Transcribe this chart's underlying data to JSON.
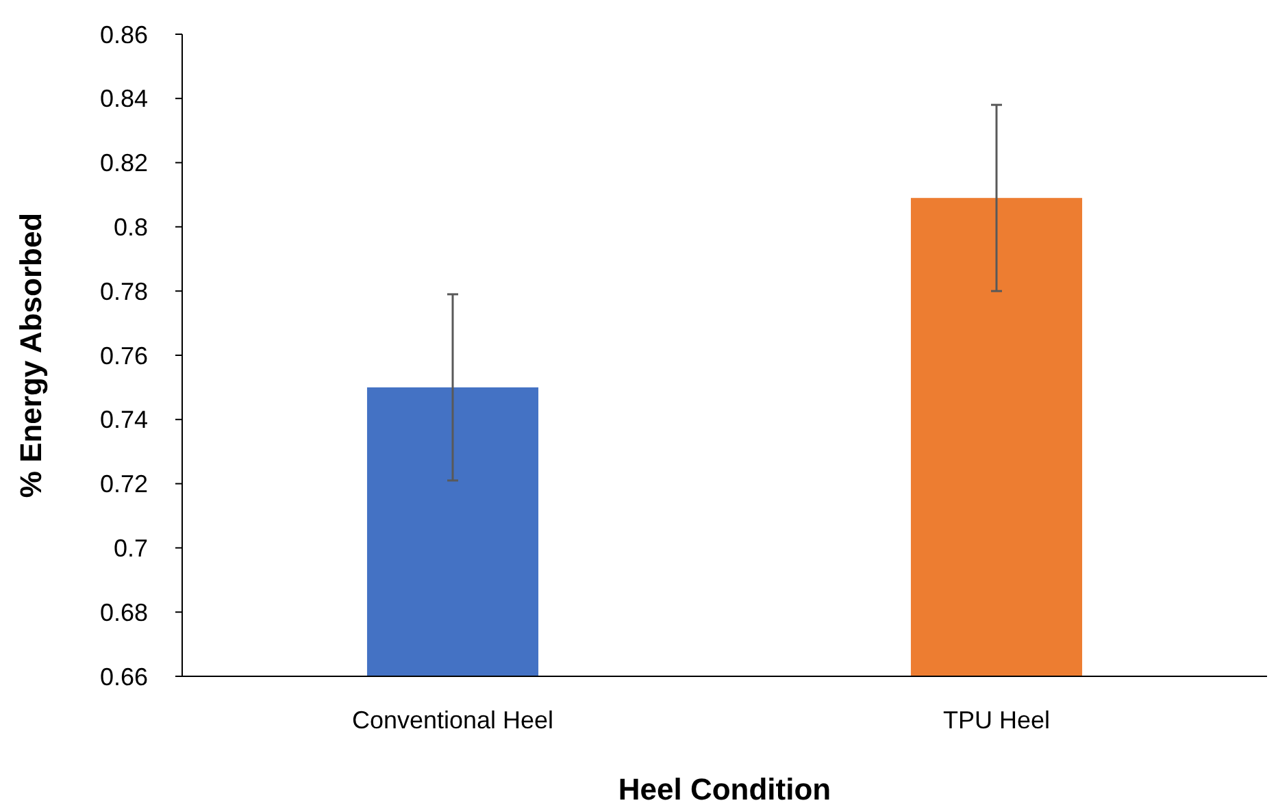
{
  "chart_data": {
    "type": "bar",
    "xlabel": "Heel Condition",
    "ylabel": "% Energy Absorbed",
    "categories": [
      "Conventional Heel",
      "TPU Heel"
    ],
    "values": [
      0.75,
      0.809
    ],
    "colors": [
      "#4472c4",
      "#ed7d31"
    ],
    "errors": [
      0.029,
      0.029
    ],
    "ylim": [
      0.66,
      0.86
    ],
    "yticks": [
      0.66,
      0.68,
      0.7,
      0.72,
      0.74,
      0.76,
      0.78,
      0.8,
      0.82,
      0.84,
      0.86
    ],
    "grid": false
  }
}
